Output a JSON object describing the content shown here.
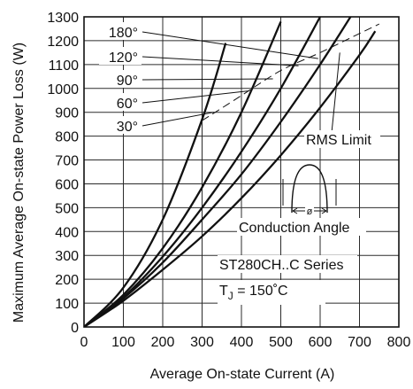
{
  "chart_data": {
    "type": "line",
    "xlabel": "Average On-state Current (A)",
    "ylabel": "Maximum Average On-state Power Loss (W)",
    "xlim": [
      0,
      800
    ],
    "ylim": [
      0,
      1300
    ],
    "xticks": [
      0,
      100,
      200,
      300,
      400,
      500,
      600,
      700,
      800
    ],
    "yticks": [
      0,
      100,
      200,
      300,
      400,
      500,
      600,
      700,
      800,
      900,
      1000,
      1100,
      1200,
      1300
    ],
    "grid": true,
    "series": [
      {
        "name": "180°",
        "x": [
          0,
          100,
          200,
          300,
          400,
          500,
          600,
          700,
          740
        ],
        "y": [
          0,
          110,
          240,
          380,
          540,
          720,
          920,
          1140,
          1240
        ]
      },
      {
        "name": "120°",
        "x": [
          0,
          100,
          200,
          300,
          400,
          500,
          600,
          700
        ],
        "y": [
          0,
          120,
          270,
          450,
          640,
          860,
          1100,
          1360
        ]
      },
      {
        "name": "90°",
        "x": [
          0,
          100,
          200,
          300,
          400,
          500,
          600
        ],
        "y": [
          0,
          125,
          295,
          500,
          735,
          1000,
          1300
        ]
      },
      {
        "name": "60°",
        "x": [
          0,
          100,
          200,
          300,
          400,
          500
        ],
        "y": [
          0,
          135,
          330,
          585,
          900,
          1280
        ]
      },
      {
        "name": "30°",
        "x": [
          0,
          100,
          200,
          300,
          360
        ],
        "y": [
          0,
          165,
          450,
          870,
          1190
        ]
      }
    ],
    "rms_limit": {
      "label": "RMS Limit",
      "x": [
        300,
        400,
        500,
        600,
        700,
        750
      ],
      "y": [
        865,
        970,
        1075,
        1150,
        1230,
        1270
      ]
    },
    "annotations": {
      "rms_label": "RMS Limit",
      "conduction_label": "Conduction Angle",
      "angle_symbol": "ø",
      "series_note": "ST280CH..C Series",
      "tj_label_prefix": "T",
      "tj_label_subscript": "J",
      "tj_label_value": " = 150˚C"
    }
  }
}
